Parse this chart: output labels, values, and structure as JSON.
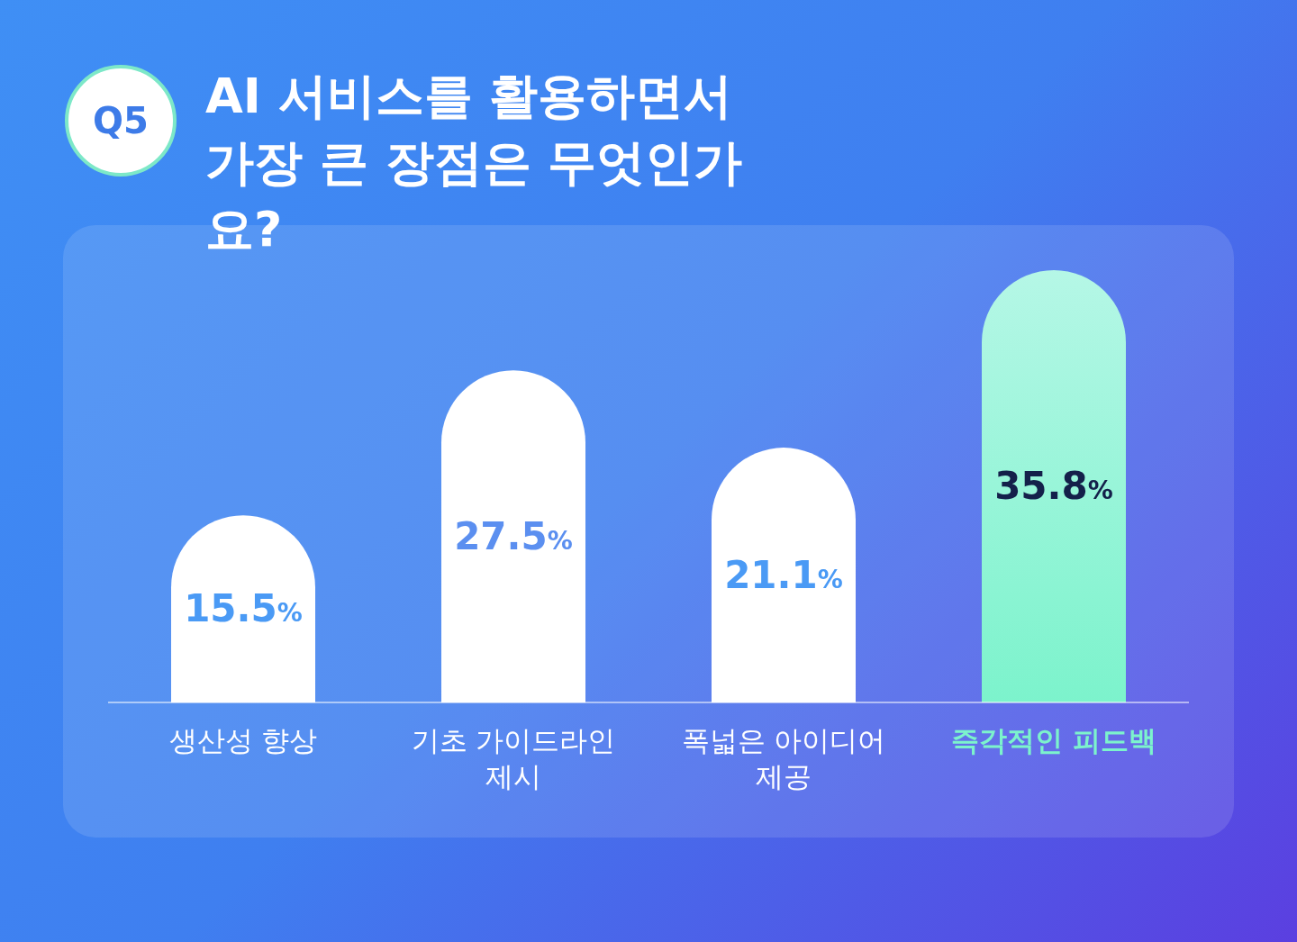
{
  "chart_data": {
    "type": "bar",
    "title": "AI 서비스를 활용하면서 가장 큰 장점은 무엇인가요?",
    "categories": [
      "생산성 향상",
      "기초 가이드라인 제시",
      "폭넓은 아이디어 제공",
      "즉각적인 피드백"
    ],
    "values": [
      15.5,
      27.5,
      21.1,
      35.8
    ],
    "colors": [
      "#ffffff",
      "#ffffff",
      "#ffffff",
      "#7cf3cc"
    ],
    "value_labels": [
      "15.5%",
      "27.5%",
      "21.1%",
      "35.8%"
    ],
    "annotations": [
      "Q5"
    ]
  }
}
